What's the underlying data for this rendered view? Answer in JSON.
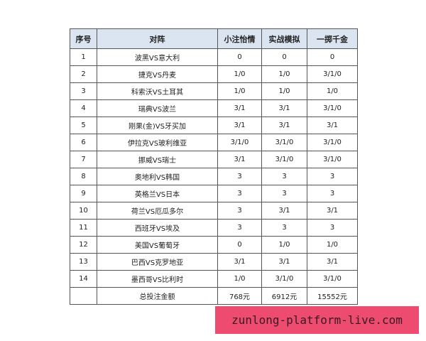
{
  "table": {
    "headers": [
      "序号",
      "对阵",
      "小注怡情",
      "实战模拟",
      "一掷千金"
    ],
    "rows": [
      [
        "1",
        "波黑VS意大利",
        "0",
        "0",
        "0"
      ],
      [
        "2",
        "捷克VS丹麦",
        "1/0",
        "1/0",
        "3/1/0"
      ],
      [
        "3",
        "科索沃VS土耳其",
        "1/0",
        "1/0",
        "1/0"
      ],
      [
        "4",
        "瑞典VS波兰",
        "3/1",
        "3/1",
        "3/1/0"
      ],
      [
        "5",
        "刚果(金)VS牙买加",
        "3/1",
        "3/1",
        "3/1"
      ],
      [
        "6",
        "伊拉克VS玻利维亚",
        "3/1/0",
        "3/1/0",
        "3/1/0"
      ],
      [
        "7",
        "挪威VS瑞士",
        "3/1",
        "3/1/0",
        "3/1/0"
      ],
      [
        "8",
        "奥地利VS韩国",
        "3",
        "3",
        "3"
      ],
      [
        "9",
        "英格兰VS日本",
        "3",
        "3",
        "3"
      ],
      [
        "10",
        "荷兰VS厄瓜多尔",
        "3",
        "3/1",
        "3/1"
      ],
      [
        "11",
        "西班牙VS埃及",
        "3",
        "3",
        "3"
      ],
      [
        "12",
        "美国VS葡萄牙",
        "0",
        "1/0",
        "1/0"
      ],
      [
        "13",
        "巴西VS克罗地亚",
        "3/1",
        "3/1",
        "3/1"
      ],
      [
        "14",
        "墨西哥VS比利时",
        "1/0",
        "3/1/0",
        "3/1/0"
      ],
      [
        "",
        "总投注金额",
        "768元",
        "6912元",
        "15552元"
      ]
    ]
  },
  "banner": {
    "text": "zunlong-platform-live.com",
    "color": "#ec3c64"
  }
}
